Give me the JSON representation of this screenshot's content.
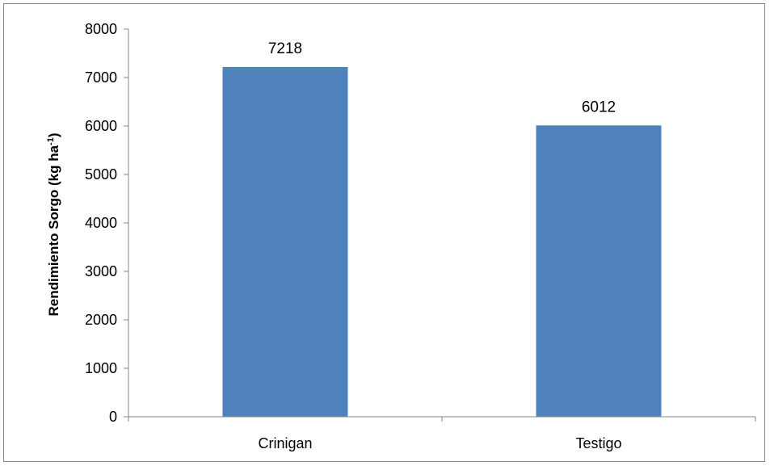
{
  "chart_data": {
    "type": "bar",
    "categories": [
      "Crinigan",
      "Testigo"
    ],
    "values": [
      7218,
      6012
    ],
    "data_labels": [
      "7218",
      "6012"
    ],
    "ylabel": "Rendimiento Sorgo (kg ha",
    "ylabel_superscript": "-1",
    "ylabel_suffix": ")",
    "ylim": [
      0,
      8000
    ],
    "yticks": [
      0,
      1000,
      2000,
      3000,
      4000,
      5000,
      6000,
      7000,
      8000
    ],
    "grid": false,
    "legend": "none",
    "colors": {
      "bar": "#4F81BD",
      "axis": "#868686",
      "frame": "#868686"
    }
  }
}
